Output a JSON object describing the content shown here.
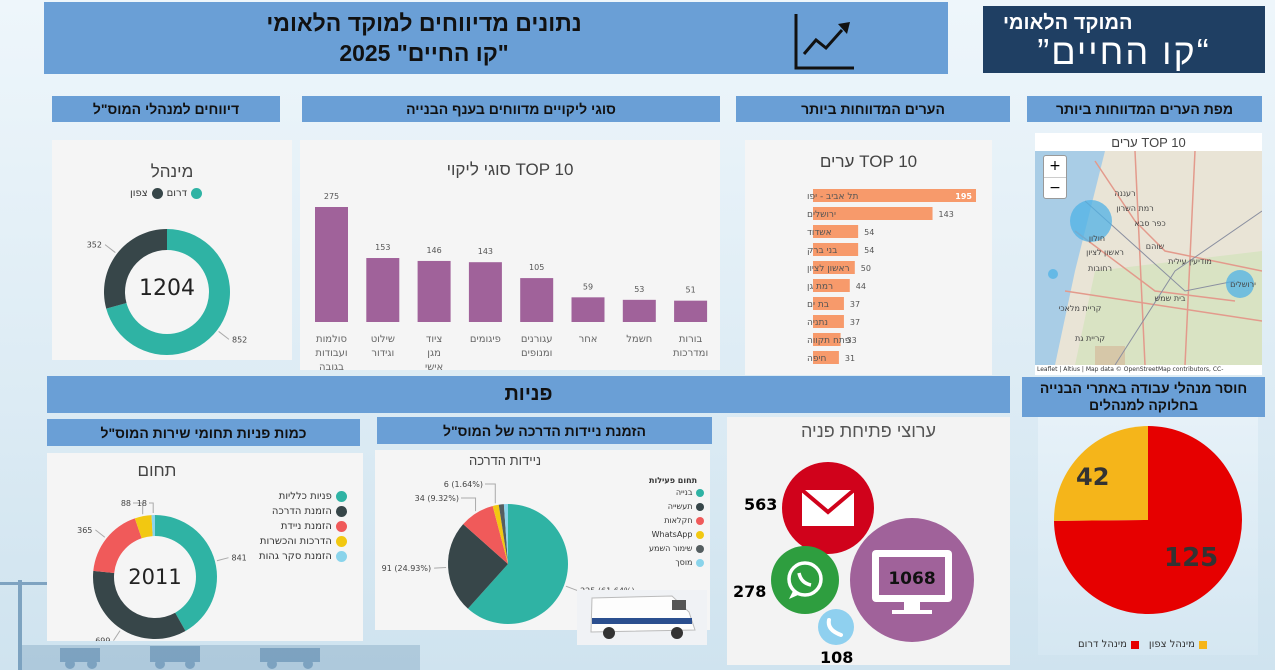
{
  "header": {
    "title_line1": "נתונים מדיווחים למוקד הלאומי",
    "title_line2": "\"קו החיים\" 2025",
    "icon": "line-chart-trend-icon"
  },
  "logo": {
    "line1": "המוקד הלאומי",
    "line2": "“קו החיים”"
  },
  "sections": {
    "managers_reports": "דיווחים  למנהלי המוס\"ל",
    "defect_types": "סוגי ליקויים מדווחים בענף הבנייה",
    "top_cities": "הערים המדווחות ביותר",
    "cities_map": "מפת הערים המדווחות ביותר",
    "inquiries": "פניות",
    "service_areas": "כמות פניות תחומי שירות המוס\"ל",
    "mobile_units": "הזמנת ניידות הדרכה של המוס\"ל",
    "channels": "ערוצי פתיחת פניה",
    "missing_managers": "חוסר מנהלי עבודה באתרי הבנייה בחלוקה למנהלים"
  },
  "map": {
    "title": "TOP 10 ערים",
    "zoom_in": "+",
    "zoom_out": "−",
    "attribution": "Leaflet | Altius | Map data © OpenStreetMap contributors, CC-",
    "place_labels": [
      "רמת השרון",
      "חולון",
      "ראשון לציון",
      "רחובות",
      "מודיעין עילית",
      "בית שמש",
      "קריית מלאכי",
      "קריית גת",
      "ירושלים",
      "רעננה",
      "כפר סבא",
      "שוהם"
    ]
  },
  "channels": {
    "email": {
      "value": "563",
      "icon": "envelope-icon"
    },
    "whatsapp": {
      "value": "278",
      "icon": "whatsapp-icon"
    },
    "web": {
      "value": "1068",
      "icon": "monitor-icon"
    },
    "phone": {
      "value": "108",
      "icon": "phone-icon"
    }
  },
  "colors": {
    "teal": "#2fb3a4",
    "dark": "#374649",
    "red": "#f05a5a",
    "yellow": "#f2c811",
    "lightblue": "#8ad4eb",
    "purple": "#a0629a",
    "orange": "#f79a6b"
  },
  "chart_data": [
    {
      "id": "managers",
      "type": "donut",
      "title": "מינהל",
      "legend": [
        "צפון",
        "דרום"
      ],
      "categories": [
        "דרום",
        "צפון"
      ],
      "values": [
        852,
        352
      ],
      "total_label": "1204"
    },
    {
      "id": "defects",
      "type": "bar",
      "title": "TOP 10 סוגי ליקוי",
      "categories": [
        "סולמות ועבודות בגובה",
        "שילוט וגידור",
        "ציוד מגן אישי",
        "פיגומים",
        "עגורנים ומנופים",
        "אחר",
        "חשמל",
        "בורות ומדרכות"
      ],
      "values": [
        275,
        153,
        146,
        143,
        105,
        59,
        53,
        51
      ]
    },
    {
      "id": "cities",
      "type": "bar",
      "orientation": "horizontal",
      "title": "TOP 10 ערים",
      "categories": [
        "תל אביב - יפו",
        "ירושלים",
        "אשדוד",
        "בני ברק",
        "ראשון לציון",
        "רמת גן",
        "בת ים",
        "נתניה",
        "פתח תקווה",
        "חיפה"
      ],
      "values": [
        195,
        143,
        54,
        54,
        50,
        44,
        37,
        37,
        33,
        31
      ]
    },
    {
      "id": "service_areas",
      "type": "donut",
      "title": "תחום",
      "categories": [
        "פניות כלליות",
        "הזמנת הדרכה",
        "הזמנת ניידת",
        "הדרכות והכשרות",
        "הזמנת סקר גהות"
      ],
      "values": [
        841,
        699,
        365,
        88,
        18
      ],
      "total_label": "2011"
    },
    {
      "id": "mobile_units",
      "type": "pie",
      "title": "ניידות הדרכה",
      "legend_title": "תחום פעילות",
      "categories": [
        "בנייה",
        "תעשייה",
        "חקלאות",
        "WhatsApp",
        "שימור השמע",
        "מוסך"
      ],
      "values": [
        225,
        91,
        34,
        6,
        5,
        4
      ],
      "data_labels": [
        "225 (61.64%)",
        "91 (24.93%)",
        "34 (9.32%)",
        "6 (1.64%)",
        "",
        ""
      ]
    },
    {
      "id": "missing_managers",
      "type": "pie",
      "categories": [
        "מינהל דרום",
        "מינהל צפון"
      ],
      "values": [
        125,
        42
      ]
    }
  ]
}
